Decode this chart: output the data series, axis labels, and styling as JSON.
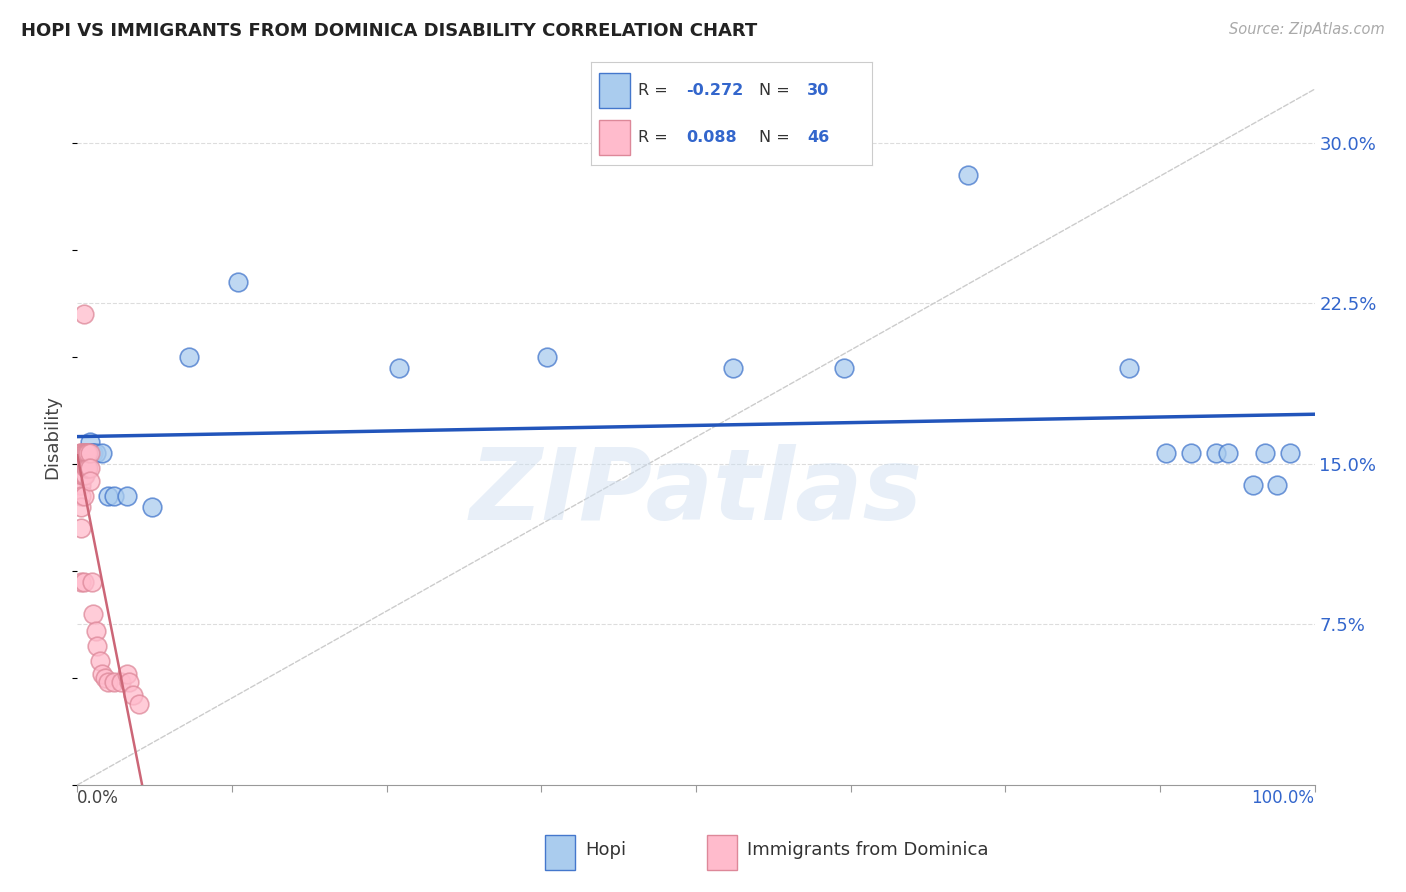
{
  "title": "HOPI VS IMMIGRANTS FROM DOMINICA DISABILITY CORRELATION CHART",
  "source": "Source: ZipAtlas.com",
  "ylabel": "Disability",
  "watermark": "ZIPatlas",
  "hopi_color": "#aaccee",
  "hopi_edge_color": "#4477cc",
  "dominica_color": "#ffbbcc",
  "dominica_edge_color": "#dd8899",
  "diag_color": "#cccccc",
  "hopi_line_color": "#2255bb",
  "dominica_line_color": "#cc6677",
  "right_axis_color": "#3366cc",
  "ytick_vals": [
    0.075,
    0.15,
    0.225,
    0.3
  ],
  "ytick_labels": [
    "7.5%",
    "15.0%",
    "22.5%",
    "30.0%"
  ],
  "legend_hopi_R": "-0.272",
  "legend_hopi_N": "30",
  "legend_dom_R": "0.088",
  "legend_dom_N": "46",
  "hopi_x": [
    0.005,
    0.007,
    0.008,
    0.009,
    0.01,
    0.011,
    0.012,
    0.013,
    0.015,
    0.02,
    0.025,
    0.03,
    0.04,
    0.06,
    0.09,
    0.13,
    0.26,
    0.38,
    0.53,
    0.62,
    0.72,
    0.85,
    0.88,
    0.9,
    0.92,
    0.93,
    0.95,
    0.96,
    0.97,
    0.98
  ],
  "hopi_y": [
    0.155,
    0.155,
    0.155,
    0.155,
    0.16,
    0.155,
    0.155,
    0.155,
    0.155,
    0.155,
    0.135,
    0.135,
    0.135,
    0.13,
    0.2,
    0.235,
    0.195,
    0.2,
    0.195,
    0.195,
    0.285,
    0.195,
    0.155,
    0.155,
    0.155,
    0.155,
    0.14,
    0.155,
    0.14,
    0.155
  ],
  "dominica_x": [
    0.002,
    0.002,
    0.002,
    0.003,
    0.003,
    0.003,
    0.003,
    0.003,
    0.003,
    0.003,
    0.003,
    0.004,
    0.004,
    0.004,
    0.005,
    0.005,
    0.005,
    0.005,
    0.005,
    0.005,
    0.006,
    0.006,
    0.006,
    0.007,
    0.007,
    0.008,
    0.008,
    0.009,
    0.009,
    0.01,
    0.01,
    0.01,
    0.012,
    0.013,
    0.015,
    0.016,
    0.018,
    0.02,
    0.022,
    0.025,
    0.03,
    0.035,
    0.04,
    0.042,
    0.045,
    0.05
  ],
  "dominica_y": [
    0.155,
    0.148,
    0.14,
    0.155,
    0.15,
    0.145,
    0.14,
    0.135,
    0.13,
    0.12,
    0.095,
    0.155,
    0.15,
    0.145,
    0.22,
    0.155,
    0.15,
    0.145,
    0.135,
    0.095,
    0.155,
    0.15,
    0.145,
    0.155,
    0.148,
    0.155,
    0.148,
    0.155,
    0.148,
    0.155,
    0.148,
    0.142,
    0.095,
    0.08,
    0.072,
    0.065,
    0.058,
    0.052,
    0.05,
    0.048,
    0.048,
    0.048,
    0.052,
    0.048,
    0.042,
    0.038
  ]
}
